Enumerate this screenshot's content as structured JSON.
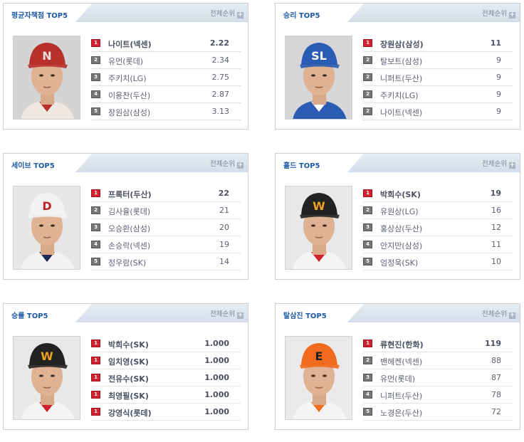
{
  "more_label": "전체순위",
  "more_icon": "plus-icon",
  "panels": [
    {
      "id": "era",
      "title": "평균자책점 TOP5",
      "photo": {
        "cap": "#b8302c",
        "logo": "N",
        "logo_color": "#e8e0d8",
        "jersey": "#efe8e2",
        "trim": "#b8302c",
        "bg": "#d4d4d4"
      },
      "rows": [
        {
          "rank": "1",
          "name": "나이트(넥센)",
          "value": "2.22"
        },
        {
          "rank": "2",
          "name": "유먼(롯데)",
          "value": "2.34"
        },
        {
          "rank": "3",
          "name": "주키치(LG)",
          "value": "2.75"
        },
        {
          "rank": "4",
          "name": "이용찬(두산)",
          "value": "2.87"
        },
        {
          "rank": "5",
          "name": "장원삼(삼성)",
          "value": "3.13"
        }
      ]
    },
    {
      "id": "wins",
      "title": "승리 TOP5",
      "photo": {
        "cap": "#2a5cb4",
        "logo": "SL",
        "logo_color": "#ffffff",
        "jersey": "#2a5cb4",
        "trim": "#ffffff",
        "bg": "#d6d6d6"
      },
      "rows": [
        {
          "rank": "1",
          "name": "장원삼(삼성)",
          "value": "11"
        },
        {
          "rank": "2",
          "name": "탈보트(삼성)",
          "value": "9"
        },
        {
          "rank": "2",
          "name": "니퍼트(두산)",
          "value": "9"
        },
        {
          "rank": "2",
          "name": "주키치(LG)",
          "value": "9"
        },
        {
          "rank": "2",
          "name": "나이트(넥센)",
          "value": "9"
        }
      ]
    },
    {
      "id": "saves",
      "title": "세이브 TOP5",
      "photo": {
        "cap": "#f2f2f2",
        "logo": "D",
        "logo_color": "#c0202a",
        "jersey": "#f2f2f2",
        "trim": "#1c2a55",
        "bg": "#e6e6e6"
      },
      "rows": [
        {
          "rank": "1",
          "name": "프록터(두산)",
          "value": "22"
        },
        {
          "rank": "2",
          "name": "김사율(롯데)",
          "value": "21"
        },
        {
          "rank": "3",
          "name": "오승환(삼성)",
          "value": "20"
        },
        {
          "rank": "4",
          "name": "손승락(넥센)",
          "value": "19"
        },
        {
          "rank": "5",
          "name": "정우람(SK)",
          "value": "14"
        }
      ]
    },
    {
      "id": "holds",
      "title": "홀드 TOP5",
      "photo": {
        "cap": "#222222",
        "logo": "W",
        "logo_color": "#f0a020",
        "jersey": "#f4f4f4",
        "trim": "#d0202a",
        "bg": "#e8e8e8"
      },
      "rows": [
        {
          "rank": "1",
          "name": "박희수(SK)",
          "value": "19"
        },
        {
          "rank": "2",
          "name": "유원상(LG)",
          "value": "16"
        },
        {
          "rank": "3",
          "name": "홍상삼(두산)",
          "value": "12"
        },
        {
          "rank": "4",
          "name": "안지만(삼성)",
          "value": "11"
        },
        {
          "rank": "5",
          "name": "엄정욱(SK)",
          "value": "10"
        }
      ]
    },
    {
      "id": "winpct",
      "title": "승률 TOP5",
      "photo": {
        "cap": "#222222",
        "logo": "W",
        "logo_color": "#f0a020",
        "jersey": "#f4f4f4",
        "trim": "#d0202a",
        "bg": "#e8e8e8"
      },
      "rows": [
        {
          "rank": "1",
          "name": "박희수(SK)",
          "value": "1.000"
        },
        {
          "rank": "1",
          "name": "임치영(SK)",
          "value": "1.000"
        },
        {
          "rank": "1",
          "name": "전유수(SK)",
          "value": "1.000"
        },
        {
          "rank": "1",
          "name": "최영필(SK)",
          "value": "1.000"
        },
        {
          "rank": "1",
          "name": "강영식(롯데)",
          "value": "1.000"
        }
      ]
    },
    {
      "id": "strikeouts",
      "title": "탈삼진 TOP5",
      "photo": {
        "cap": "#f26a1e",
        "logo": "E",
        "logo_color": "#222222",
        "jersey": "#f4f4f4",
        "trim": "#f26a1e",
        "bg": "#eaeaea"
      },
      "rows": [
        {
          "rank": "1",
          "name": "류현진(한화)",
          "value": "119"
        },
        {
          "rank": "2",
          "name": "밴헤켄(넥센)",
          "value": "88"
        },
        {
          "rank": "3",
          "name": "유먼(롯데)",
          "value": "87"
        },
        {
          "rank": "4",
          "name": "니퍼트(두산)",
          "value": "78"
        },
        {
          "rank": "5",
          "name": "노경은(두산)",
          "value": "72"
        }
      ]
    }
  ]
}
